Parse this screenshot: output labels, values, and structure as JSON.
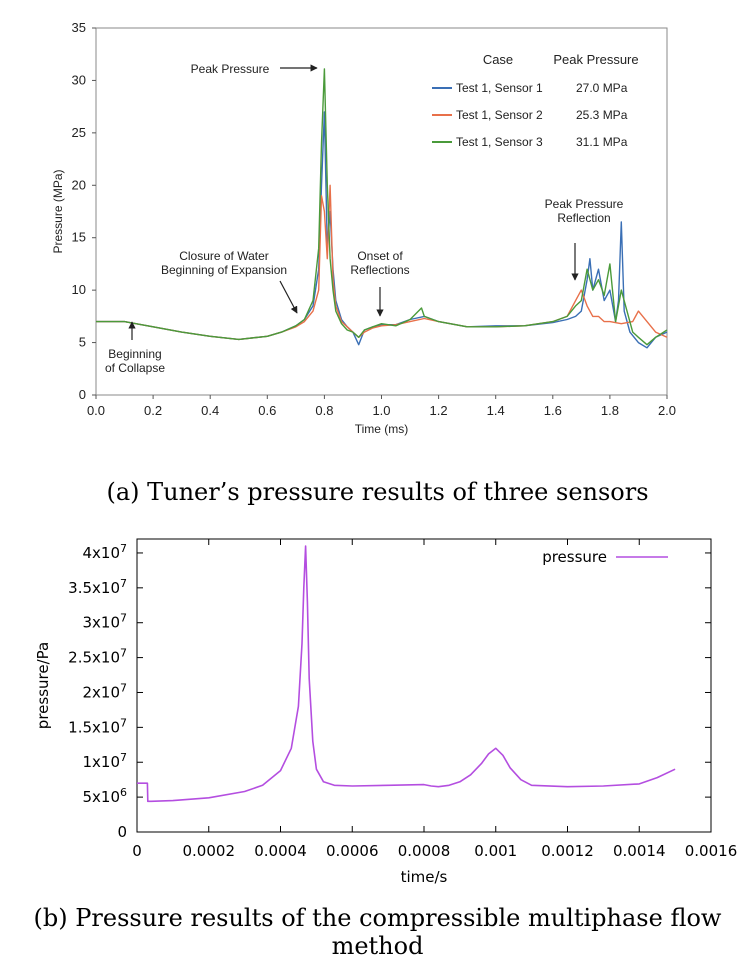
{
  "chart_data": [
    {
      "type": "line",
      "title": "",
      "xlabel": "Time (ms)",
      "ylabel": "Pressure (MPa)",
      "xlim": [
        0,
        2.0
      ],
      "ylim": [
        0,
        35
      ],
      "xticks": [
        "0.0",
        "0.2",
        "0.4",
        "0.6",
        "0.8",
        "1.0",
        "1.2",
        "1.4",
        "1.6",
        "1.8",
        "2.0"
      ],
      "yticks": [
        "0",
        "5",
        "10",
        "15",
        "20",
        "25",
        "30",
        "35"
      ],
      "grid": false,
      "legend": {
        "position": "top-right",
        "header_case": "Case",
        "header_peak": "Peak Pressure",
        "entries": [
          {
            "name": "Test 1, Sensor 1",
            "peak": "27.0 MPa",
            "color": "#3a6fb5"
          },
          {
            "name": "Test 1, Sensor 2",
            "peak": "25.3 MPa",
            "color": "#e8704a"
          },
          {
            "name": "Test 1, Sensor 3",
            "peak": "31.1 MPa",
            "color": "#4a9a3a"
          }
        ]
      },
      "annotations": [
        {
          "lines": [
            "Peak Pressure"
          ],
          "x": 0.8,
          "y": 31.3
        },
        {
          "lines": [
            "Peak Pressure",
            "Reflection"
          ],
          "x": 1.68,
          "y": 10.8
        },
        {
          "lines": [
            "Closure of Water",
            "Beginning of Expansion"
          ],
          "x": 0.74,
          "y": 7.8
        },
        {
          "lines": [
            "Onset of",
            "Reflections"
          ],
          "x": 1.0,
          "y": 7.2
        },
        {
          "lines": [
            "Beginning",
            "of Collapse"
          ],
          "x": 0.13,
          "y": 7.0
        }
      ],
      "series": [
        {
          "name": "Test 1, Sensor 1",
          "color": "#3a6fb5",
          "x": [
            0,
            0.1,
            0.2,
            0.3,
            0.4,
            0.5,
            0.6,
            0.65,
            0.7,
            0.73,
            0.76,
            0.78,
            0.79,
            0.8,
            0.81,
            0.82,
            0.83,
            0.84,
            0.86,
            0.88,
            0.9,
            0.92,
            0.94,
            0.97,
            1.0,
            1.05,
            1.1,
            1.15,
            1.2,
            1.3,
            1.4,
            1.5,
            1.6,
            1.65,
            1.68,
            1.7,
            1.72,
            1.73,
            1.74,
            1.76,
            1.78,
            1.8,
            1.82,
            1.83,
            1.84,
            1.85,
            1.87,
            1.9,
            1.93,
            1.96,
            2.0
          ],
          "y": [
            7.0,
            7.0,
            6.5,
            6.0,
            5.6,
            5.3,
            5.6,
            6.0,
            6.6,
            7.2,
            8.5,
            12.0,
            20.0,
            27.0,
            14.0,
            17.5,
            12.0,
            9.0,
            7.2,
            6.5,
            6.0,
            4.8,
            6.2,
            6.5,
            6.7,
            6.7,
            7.2,
            7.5,
            7.0,
            6.5,
            6.6,
            6.6,
            6.9,
            7.2,
            7.5,
            8.0,
            11.0,
            13.0,
            10.0,
            12.0,
            9.0,
            10.0,
            7.0,
            9.0,
            16.5,
            8.0,
            6.0,
            5.0,
            4.5,
            5.5,
            6.0
          ]
        },
        {
          "name": "Test 1, Sensor 2",
          "color": "#e8704a",
          "x": [
            0,
            0.1,
            0.2,
            0.3,
            0.4,
            0.5,
            0.6,
            0.65,
            0.7,
            0.73,
            0.76,
            0.78,
            0.79,
            0.8,
            0.81,
            0.82,
            0.83,
            0.84,
            0.86,
            0.88,
            0.9,
            0.92,
            0.94,
            0.97,
            1.0,
            1.05,
            1.1,
            1.15,
            1.2,
            1.3,
            1.4,
            1.5,
            1.6,
            1.65,
            1.68,
            1.7,
            1.72,
            1.74,
            1.76,
            1.78,
            1.8,
            1.84,
            1.88,
            1.9,
            1.93,
            1.96,
            2.0
          ],
          "y": [
            7.0,
            7.0,
            6.5,
            6.0,
            5.6,
            5.3,
            5.6,
            6.0,
            6.5,
            7.0,
            8.0,
            10.0,
            19.0,
            17.5,
            13.0,
            20.0,
            11.0,
            8.5,
            7.0,
            6.5,
            6.0,
            5.5,
            6.0,
            6.4,
            6.6,
            6.7,
            7.0,
            7.3,
            7.0,
            6.5,
            6.5,
            6.6,
            7.0,
            7.5,
            9.0,
            10.0,
            8.5,
            7.5,
            7.5,
            7.0,
            7.0,
            6.8,
            7.0,
            8.0,
            7.0,
            6.0,
            5.5
          ]
        },
        {
          "name": "Test 1, Sensor 3",
          "color": "#4a9a3a",
          "x": [
            0,
            0.1,
            0.2,
            0.3,
            0.4,
            0.5,
            0.6,
            0.65,
            0.7,
            0.73,
            0.76,
            0.78,
            0.79,
            0.8,
            0.81,
            0.82,
            0.83,
            0.84,
            0.86,
            0.88,
            0.9,
            0.92,
            0.94,
            0.97,
            1.0,
            1.05,
            1.1,
            1.14,
            1.15,
            1.2,
            1.3,
            1.4,
            1.5,
            1.6,
            1.65,
            1.68,
            1.7,
            1.72,
            1.74,
            1.76,
            1.78,
            1.8,
            1.82,
            1.84,
            1.86,
            1.88,
            1.9,
            1.93,
            1.96,
            2.0
          ],
          "y": [
            7.0,
            7.0,
            6.5,
            6.0,
            5.6,
            5.3,
            5.6,
            6.0,
            6.6,
            7.2,
            9.0,
            14.0,
            24.0,
            31.1,
            20.0,
            13.0,
            10.0,
            8.0,
            6.8,
            6.2,
            6.0,
            5.5,
            6.2,
            6.5,
            6.8,
            6.6,
            7.2,
            8.3,
            7.5,
            7.0,
            6.5,
            6.5,
            6.6,
            7.0,
            7.5,
            8.5,
            9.0,
            12.0,
            10.0,
            11.0,
            9.5,
            12.5,
            7.0,
            10.0,
            8.0,
            6.0,
            5.5,
            4.8,
            5.5,
            6.2
          ]
        }
      ]
    },
    {
      "type": "line",
      "title": "",
      "xlabel": "time/s",
      "ylabel": "pressure/Pa",
      "xlim": [
        0,
        0.0016
      ],
      "ylim": [
        0,
        42000000
      ],
      "xticks": [
        "0",
        "0.0002",
        "0.0004",
        "0.0006",
        "0.0008",
        "0.001",
        "0.0012",
        "0.0014",
        "0.0016"
      ],
      "yticks": [
        {
          "base": "0",
          "exp": ""
        },
        {
          "base": "5x10",
          "exp": "6"
        },
        {
          "base": "1x10",
          "exp": "7"
        },
        {
          "base": "1.5x10",
          "exp": "7"
        },
        {
          "base": "2x10",
          "exp": "7"
        },
        {
          "base": "2.5x10",
          "exp": "7"
        },
        {
          "base": "3x10",
          "exp": "7"
        },
        {
          "base": "3.5x10",
          "exp": "7"
        },
        {
          "base": "4x10",
          "exp": "7"
        }
      ],
      "grid": false,
      "legend": {
        "position": "top-right"
      },
      "series": [
        {
          "name": "pressure",
          "color": "#b44ee0",
          "x": [
            0,
            1e-05,
            2e-05,
            2.9e-05,
            3e-05,
            4e-05,
            0.0001,
            0.0002,
            0.0003,
            0.00035,
            0.0004,
            0.00043,
            0.00045,
            0.00046,
            0.000465,
            0.00047,
            0.000475,
            0.00048,
            0.00049,
            0.0005,
            0.00052,
            0.00055,
            0.0006,
            0.0007,
            0.0008,
            0.00082,
            0.00084,
            0.00087,
            0.0009,
            0.00093,
            0.00096,
            0.00098,
            0.001,
            0.00102,
            0.00104,
            0.00107,
            0.0011,
            0.0012,
            0.0013,
            0.0014,
            0.00145,
            0.0015
          ],
          "y": [
            7000000,
            7000000,
            7000000,
            7000000,
            4400000,
            4400000,
            4500000,
            4900000,
            5800000,
            6700000,
            8800000,
            12000000,
            18000000,
            27000000,
            35000000,
            41000000,
            33000000,
            22000000,
            13000000,
            9000000,
            7200000,
            6700000,
            6600000,
            6700000,
            6800000,
            6600000,
            6500000,
            6700000,
            7200000,
            8200000,
            9800000,
            11200000,
            12000000,
            11000000,
            9200000,
            7500000,
            6700000,
            6500000,
            6600000,
            6900000,
            7800000,
            9000000
          ]
        }
      ]
    }
  ],
  "captions": {
    "a": "(a) Tuner’s pressure results of three sensors",
    "b": "(b) Pressure results of the compressible multiphase flow method"
  }
}
